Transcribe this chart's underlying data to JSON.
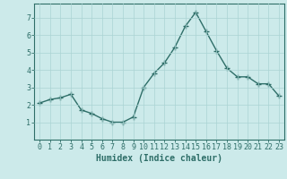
{
  "x": [
    0,
    1,
    2,
    3,
    4,
    5,
    6,
    7,
    8,
    9,
    10,
    11,
    12,
    13,
    14,
    15,
    16,
    17,
    18,
    19,
    20,
    21,
    22,
    23
  ],
  "y": [
    2.1,
    2.3,
    2.4,
    2.6,
    1.7,
    1.5,
    1.2,
    1.0,
    1.0,
    1.3,
    3.0,
    3.8,
    4.4,
    5.3,
    6.5,
    7.3,
    6.2,
    5.1,
    4.1,
    3.6,
    3.6,
    3.2,
    3.2,
    2.5
  ],
  "line_color": "#2e6e68",
  "bg_color": "#cceaea",
  "grid_color": "#aad4d4",
  "xlabel": "Humidex (Indice chaleur)",
  "ylim": [
    0,
    7.8
  ],
  "xlim": [
    -0.5,
    23.5
  ],
  "yticks": [
    1,
    2,
    3,
    4,
    5,
    6,
    7
  ],
  "xticks": [
    0,
    1,
    2,
    3,
    4,
    5,
    6,
    7,
    8,
    9,
    10,
    11,
    12,
    13,
    14,
    15,
    16,
    17,
    18,
    19,
    20,
    21,
    22,
    23
  ],
  "tick_label_color": "#2e6e68",
  "xlabel_color": "#2e6e68",
  "xlabel_fontsize": 7,
  "tick_fontsize": 6,
  "marker": "+",
  "linewidth": 1.0,
  "marker_size": 4,
  "marker_edge_width": 1.0
}
